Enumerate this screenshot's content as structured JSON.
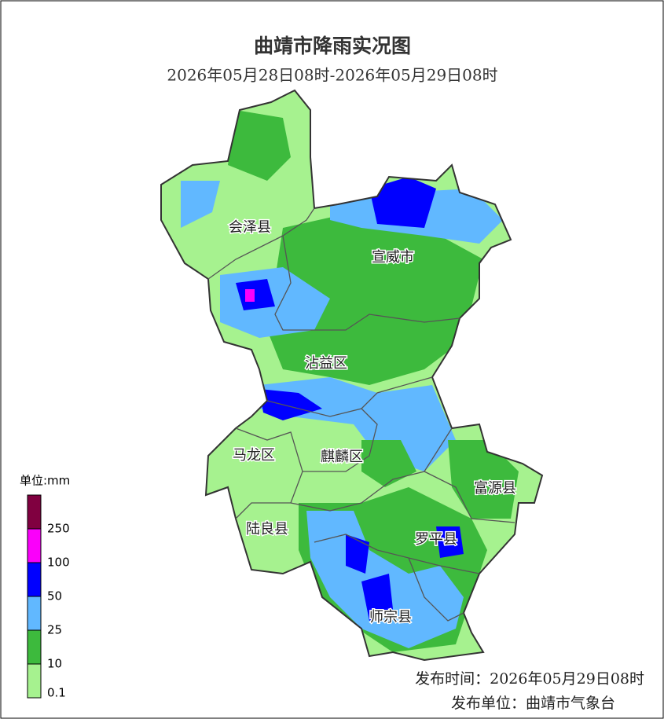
{
  "header": {
    "title": "曲靖市降雨实况图",
    "subtitle": "2026年05月28日08时-2026年05月29日08时"
  },
  "map": {
    "regions": [
      {
        "label": "会泽县"
      },
      {
        "label": "宣威市"
      },
      {
        "label": "沾益区"
      },
      {
        "label": "马龙区"
      },
      {
        "label": "麒麟区"
      },
      {
        "label": "富源县"
      },
      {
        "label": "陆良县"
      },
      {
        "label": "罗平县"
      },
      {
        "label": "师宗县"
      }
    ]
  },
  "legend": {
    "unit": "单位:mm",
    "ticks": [
      0.1,
      10,
      25,
      50,
      100,
      250
    ],
    "colors": [
      "#a6f28f",
      "#3dba3d",
      "#61b8ff",
      "#0000ff",
      "#fa00fa",
      "#800040"
    ]
  },
  "footer": {
    "time": "发布时间：2026年05月29日08时",
    "issuer": "发布单位：曲靖市气象台"
  }
}
